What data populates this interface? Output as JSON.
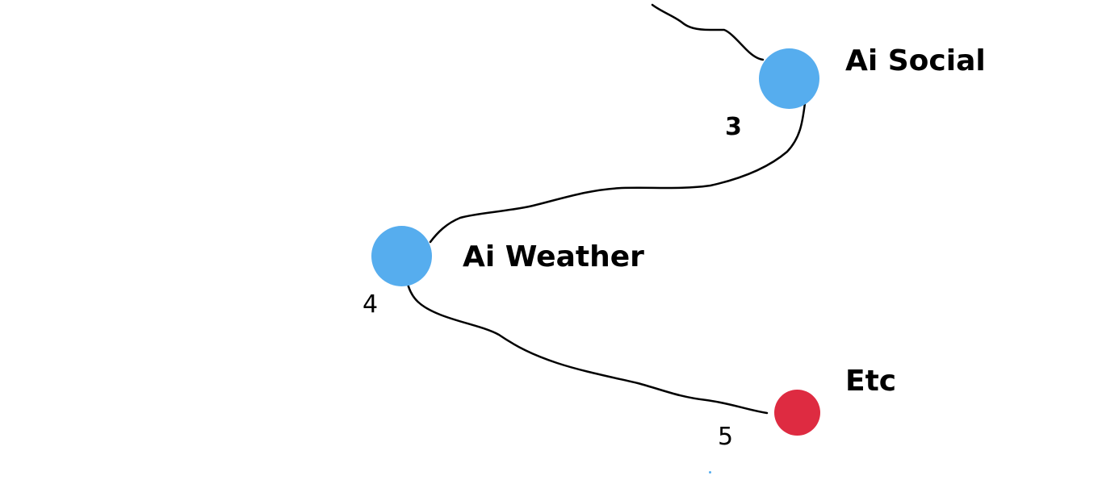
{
  "nodes": [
    {
      "label": "Ai Social",
      "step": "3",
      "color": "#56adee"
    },
    {
      "label": "Ai Weather",
      "step": "4",
      "color": "#56adee"
    },
    {
      "label": "Etc",
      "step": "5",
      "color": "#de2b41"
    }
  ],
  "line_color": "#000000"
}
